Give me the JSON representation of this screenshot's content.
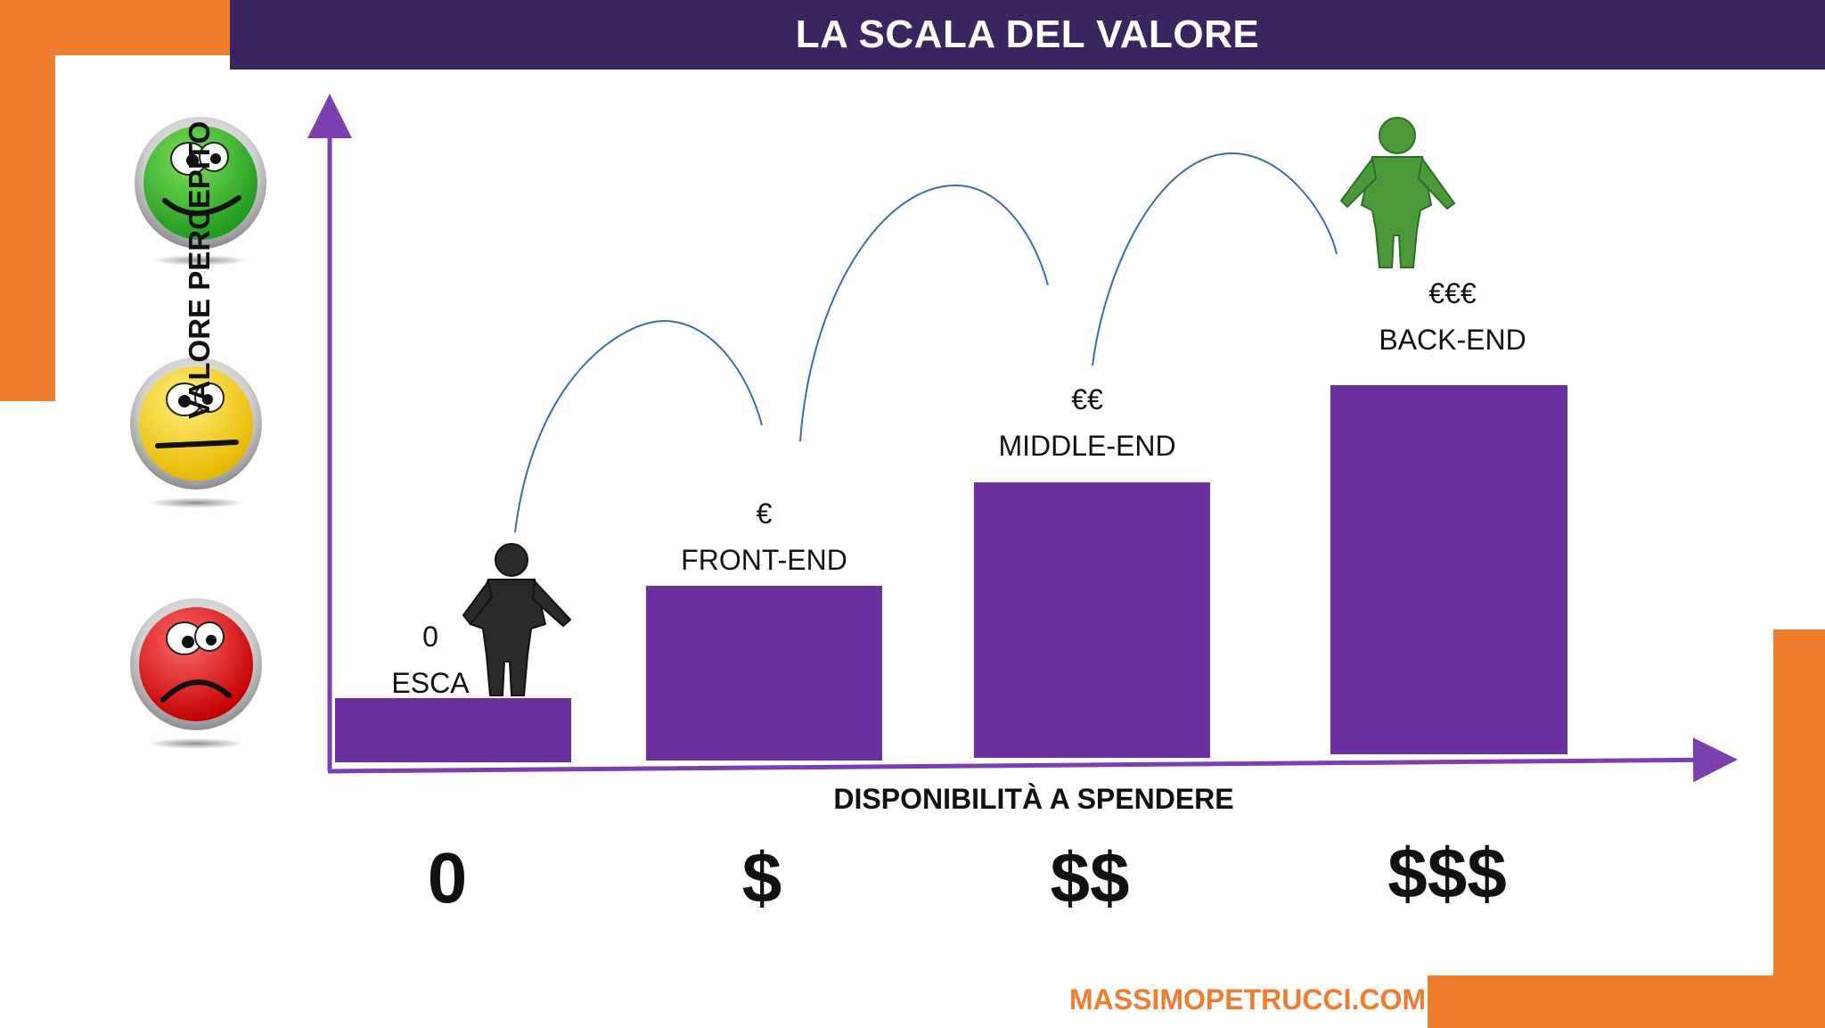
{
  "title": "LA SCALA DEL VALORE",
  "colors": {
    "purple_dark": "#3a2560",
    "purple_bar": "#6b2fa0",
    "axis": "#7b3fb0",
    "orange": "#f07c2e",
    "arc": "#3b6bb0"
  },
  "y_axis_label": "VALORE PERCEPITO",
  "x_axis_label": "DISPONIBILITÀ A SPENDERE",
  "faces": [
    {
      "name": "happy-face-icon",
      "color": "#2fb52f"
    },
    {
      "name": "neutral-face-icon",
      "color": "#f0c800"
    },
    {
      "name": "sad-face-icon",
      "color": "#e01818"
    }
  ],
  "tiers": [
    {
      "price": "0",
      "name": "ESCA",
      "spend": "0",
      "value_level": 1
    },
    {
      "price": "€",
      "name": "FRONT-END",
      "spend": "$",
      "value_level": 2
    },
    {
      "price": "€€",
      "name": "MIDDLE-END",
      "spend": "$$",
      "value_level": 3
    },
    {
      "price": "€€€",
      "name": "BACK-END",
      "spend": "$$$",
      "value_level": 4
    }
  ],
  "footer_url": "MASSIMOPETRUCCI.COM"
}
